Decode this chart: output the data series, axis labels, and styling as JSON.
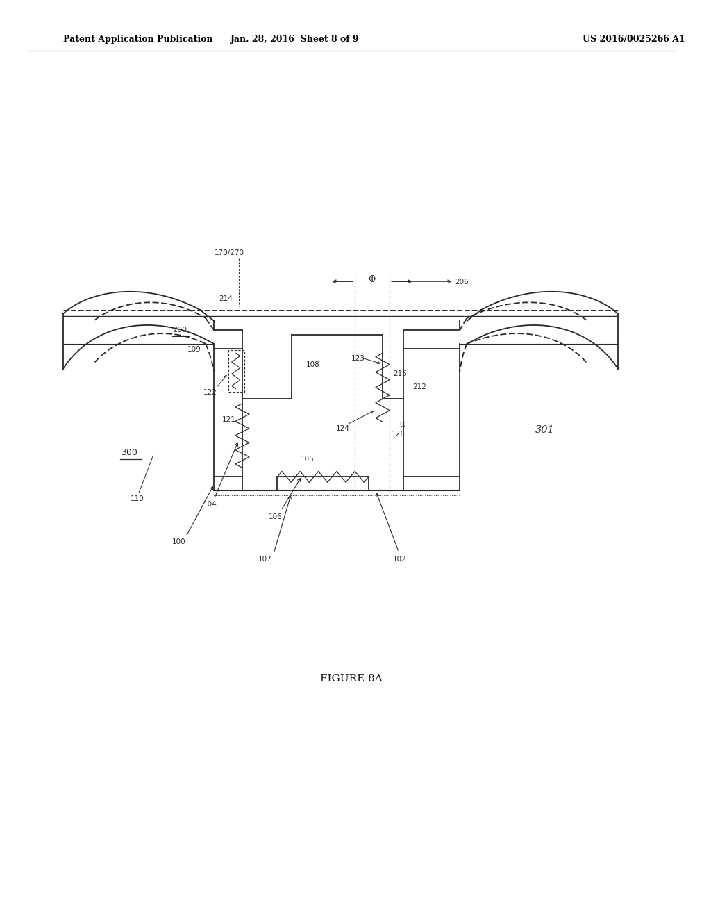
{
  "bg_color": "#ffffff",
  "header_left": "Patent Application Publication",
  "header_center": "Jan. 28, 2016  Sheet 8 of 9",
  "header_right": "US 2016/0025266 A1",
  "figure_label": "FIGURE 8A",
  "line_color": "#2a2a2a"
}
